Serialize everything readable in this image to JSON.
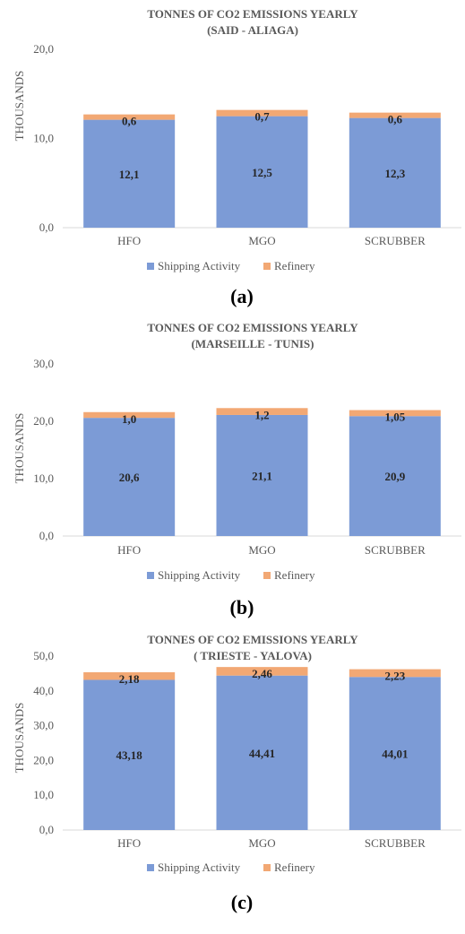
{
  "colors": {
    "shipping": "#7c9bd6",
    "refinery": "#f2a874",
    "text": "#595959",
    "value_text": "#262626",
    "axis": "#d9d9d9"
  },
  "legend_labels": {
    "shipping": "Shipping Activity",
    "refinery": "Refinery"
  },
  "chart_data": [
    {
      "type": "bar",
      "stacked": true,
      "panel_label": "(a)",
      "title": "TONNES OF CO2 EMISSIONS YEARLY",
      "subtitle": "(SAID - ALIAGA)",
      "ylabel": "THOUSANDS",
      "xlabel": "",
      "categories": [
        "HFO",
        "MGO",
        "SCRUBBER"
      ],
      "series": [
        {
          "name": "Shipping Activity",
          "values": [
            12.1,
            12.5,
            12.3
          ],
          "labels": [
            "12,1",
            "12,5",
            "12,3"
          ]
        },
        {
          "name": "Refinery",
          "values": [
            0.6,
            0.7,
            0.6
          ],
          "labels": [
            "0,6",
            "0,7",
            "0,6"
          ]
        }
      ],
      "ylim": [
        0,
        20
      ],
      "yticks": [
        "0,0",
        "10,0",
        "20,0"
      ],
      "grid": false,
      "legend": "bottom"
    },
    {
      "type": "bar",
      "stacked": true,
      "panel_label": "(b)",
      "title": "TONNES OF CO2 EMISSIONS YEARLY",
      "subtitle": "(MARSEILLE - TUNIS)",
      "ylabel": "THOUSANDS",
      "xlabel": "",
      "categories": [
        "HFO",
        "MGO",
        "SCRUBBER"
      ],
      "series": [
        {
          "name": "Shipping Activity",
          "values": [
            20.6,
            21.1,
            20.9
          ],
          "labels": [
            "20,6",
            "21,1",
            "20,9"
          ]
        },
        {
          "name": "Refinery",
          "values": [
            1.0,
            1.2,
            1.05
          ],
          "labels": [
            "1,0",
            "1,2",
            "1,05"
          ]
        }
      ],
      "ylim": [
        0,
        30
      ],
      "yticks": [
        "0,0",
        "10,0",
        "20,0",
        "30,0"
      ],
      "grid": false,
      "legend": "bottom"
    },
    {
      "type": "bar",
      "stacked": true,
      "panel_label": "(c)",
      "title": "TONNES OF CO2 EMISSIONS YEARLY",
      "subtitle": "( TRIESTE - YALOVA)",
      "ylabel": "THOUSANDS",
      "xlabel": "",
      "categories": [
        "HFO",
        "MGO",
        "SCRUBBER"
      ],
      "series": [
        {
          "name": "Shipping Activity",
          "values": [
            43.18,
            44.41,
            44.01
          ],
          "labels": [
            "43,18",
            "44,41",
            "44,01"
          ]
        },
        {
          "name": "Refinery",
          "values": [
            2.18,
            2.46,
            2.23
          ],
          "labels": [
            "2,18",
            "2,46",
            "2,23"
          ]
        }
      ],
      "ylim": [
        0,
        50
      ],
      "yticks": [
        "0,0",
        "10,0",
        "20,0",
        "30,0",
        "40,0",
        "50,0"
      ],
      "grid": false,
      "legend": "bottom"
    }
  ]
}
